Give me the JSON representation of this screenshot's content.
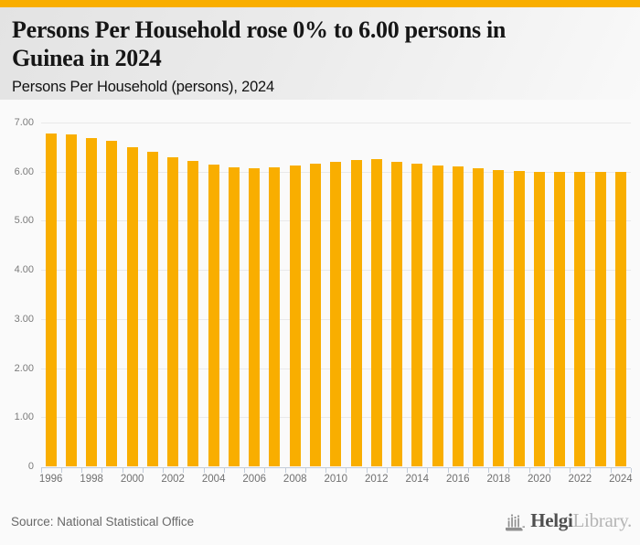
{
  "header": {
    "title_line1": "Persons Per Household rose 0% to 6.00 persons in",
    "title_line2": "Guinea in 2024",
    "subtitle": "Persons Per Household (persons), 2024"
  },
  "footer": {
    "source": "Source: National Statistical Office",
    "logo_text_bold": "Helgi",
    "logo_text_light": "Library."
  },
  "colors": {
    "accent_orange": "#f9ae00",
    "bar": "#f9ae00",
    "axis": "#c2ccd9",
    "grid": "#e9e9e9",
    "chart_background": "#fafafa"
  },
  "chart_data": {
    "type": "bar",
    "title": "Persons Per Household rose 0% to 6.00 persons in Guinea in 2024",
    "subtitle": "Persons Per Household (persons), 2024",
    "categories": [
      1996,
      1997,
      1998,
      1999,
      2000,
      2001,
      2002,
      2003,
      2004,
      2005,
      2006,
      2007,
      2008,
      2009,
      2010,
      2011,
      2012,
      2013,
      2014,
      2015,
      2016,
      2017,
      2018,
      2019,
      2020,
      2021,
      2022,
      2023,
      2024
    ],
    "values": [
      6.78,
      6.76,
      6.7,
      6.64,
      6.51,
      6.41,
      6.31,
      6.23,
      6.15,
      6.09,
      6.08,
      6.1,
      6.14,
      6.18,
      6.21,
      6.24,
      6.26,
      6.21,
      6.17,
      6.14,
      6.11,
      6.08,
      6.05,
      6.02,
      6.01,
      6.0,
      6.0,
      6.0,
      6.0
    ],
    "xlabel": "",
    "ylabel": "",
    "ylim": [
      0,
      7
    ],
    "y_tick_values": [
      7,
      6,
      5,
      4,
      3,
      2,
      1,
      0
    ],
    "y_tick_labels": [
      "7.00",
      "6.00",
      "5.00",
      "4.00",
      "3.00",
      "2.00",
      "1.00",
      "0"
    ],
    "x_tick_labels": [
      "1996",
      "1998",
      "2000",
      "2002",
      "2004",
      "2006",
      "2008",
      "2010",
      "2012",
      "2014",
      "2016",
      "2018",
      "2020",
      "2022",
      "2024"
    ],
    "grid": true,
    "legend": false,
    "bar_color": "#f9ae00"
  }
}
